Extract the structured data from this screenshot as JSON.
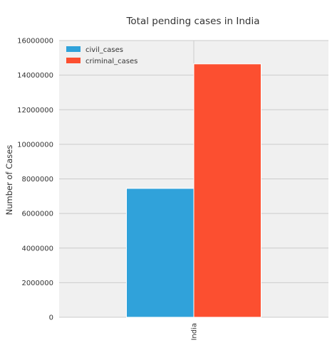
{
  "chart_data": {
    "type": "bar",
    "title": "Total pending cases in India",
    "xlabel": "",
    "ylabel": "Number of Cases",
    "categories": [
      "India"
    ],
    "series": [
      {
        "name": "civil_cases",
        "values": [
          7450000
        ],
        "color": "#30a2da"
      },
      {
        "name": "criminal_cases",
        "values": [
          14650000
        ],
        "color": "#fc4f30"
      }
    ],
    "ylim": [
      0,
      16000000
    ],
    "yticks": [
      0,
      2000000,
      4000000,
      6000000,
      8000000,
      10000000,
      12000000,
      14000000,
      16000000
    ],
    "grid": true,
    "legend_position": "top-left",
    "plot_background": "#f0f0f0",
    "grid_color": "#cbcbcb"
  }
}
